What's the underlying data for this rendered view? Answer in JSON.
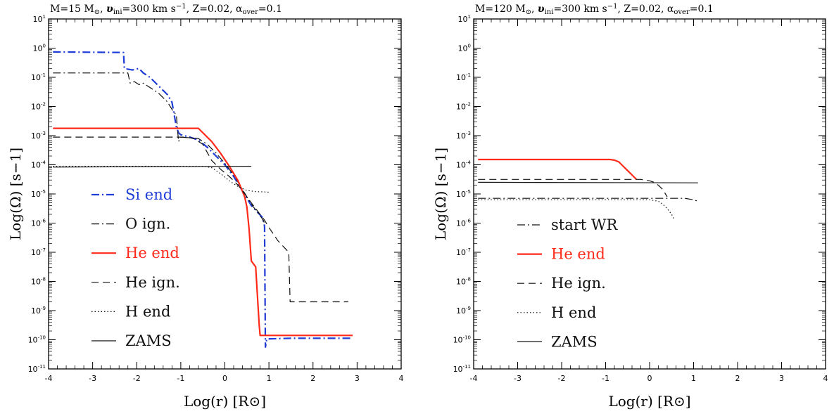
{
  "chart_data": [
    {
      "type": "line",
      "title": "M=15 M⊙, υini=300 km s−1, Z=0.02, αover=0.1",
      "title_parts": [
        "M=15 M",
        "⊙",
        ", ",
        "υ",
        "ini",
        "=300 km s",
        "−1",
        ", Z=0.02, ",
        "α",
        "over",
        "=0.1"
      ],
      "xlabel": "Log(r) [R⊙]",
      "ylabel": "Log(Ω) [s−1]",
      "xlim": [
        -4,
        4
      ],
      "ylim_exp": [
        -11,
        1
      ],
      "y_log_scale": true,
      "x_ticks": [
        "-4",
        "-3",
        "-2",
        "-1",
        "0",
        "1",
        "2",
        "3",
        "4"
      ],
      "y_tick_exponents": [
        "1",
        "0",
        "-1",
        "-2",
        "-3",
        "-4",
        "-5",
        "-6",
        "-7",
        "-8",
        "-9",
        "-10",
        "-11"
      ],
      "legend_placement": "lower-left",
      "series": [
        {
          "name": "Si end",
          "color": "#1f3cd6",
          "dash": "dashdot",
          "width": 2.2,
          "label_color": "#1f3cd6",
          "x": [
            -3.9,
            -2.3,
            -2.28,
            -2.1,
            -1.95,
            -1.85,
            -1.7,
            -1.5,
            -1.3,
            -1.2,
            -1.1,
            -1.05,
            -1.0,
            -0.8,
            -0.6,
            -0.4,
            -0.2,
            0.0,
            0.2,
            0.4,
            0.6,
            0.85,
            0.9,
            0.92,
            0.95,
            1.5,
            2.9
          ],
          "y": [
            -0.13,
            -0.15,
            -0.7,
            -0.75,
            -0.7,
            -0.85,
            -1.0,
            -1.3,
            -1.6,
            -1.85,
            -2.7,
            -2.9,
            -2.97,
            -3.05,
            -3.15,
            -3.4,
            -3.7,
            -4.0,
            -4.4,
            -4.9,
            -5.4,
            -5.8,
            -6.1,
            -10.25,
            -9.97,
            -9.95,
            -9.95
          ]
        },
        {
          "name": "O ign.",
          "color": "#111111",
          "dash": "dashdot",
          "width": 1.2,
          "label_color": "#111111",
          "x": [
            -3.9,
            -2.2,
            -2.15,
            -2.05,
            -1.95,
            -1.85,
            -1.7,
            -1.5,
            -1.3,
            -1.2,
            -1.1,
            -1.05,
            -1.0,
            -0.6,
            -0.4,
            -0.2,
            0.0,
            0.2,
            0.4,
            0.6,
            0.85,
            0.9
          ],
          "y": [
            -0.85,
            -0.85,
            -1.2,
            -1.15,
            -1.25,
            -1.2,
            -1.35,
            -1.55,
            -1.85,
            -2.1,
            -2.3,
            -3.2,
            -3.05,
            -3.1,
            -3.3,
            -3.6,
            -3.95,
            -4.35,
            -4.85,
            -5.35,
            -5.85,
            -6.0
          ]
        },
        {
          "name": "He end",
          "color": "#ff2a1a",
          "dash": "solid",
          "width": 2.2,
          "label_color": "#ff2a1a",
          "x": [
            -3.9,
            -0.6,
            -0.5,
            -0.3,
            -0.1,
            0.1,
            0.3,
            0.45,
            0.5,
            0.55,
            0.6,
            0.7,
            0.78,
            0.8,
            2.9
          ],
          "y": [
            -2.75,
            -2.75,
            -2.9,
            -3.2,
            -3.6,
            -4.05,
            -4.55,
            -5.1,
            -5.45,
            -6.2,
            -7.3,
            -7.5,
            -9.5,
            -9.85,
            -9.85
          ]
        },
        {
          "name": "He ign.",
          "color": "#111111",
          "dash": "dashed",
          "width": 1.2,
          "label_color": "#111111",
          "x": [
            -3.9,
            -0.9,
            -0.7,
            -0.5,
            -0.3,
            -0.1,
            0.1,
            0.3,
            0.5,
            0.7,
            0.9,
            1.0,
            1.2,
            1.45,
            1.48,
            2.8
          ],
          "y": [
            -3.05,
            -3.05,
            -3.1,
            -3.3,
            -3.85,
            -4.15,
            -4.4,
            -4.7,
            -5.1,
            -5.5,
            -5.9,
            -6.15,
            -6.6,
            -7.0,
            -8.7,
            -8.7
          ]
        },
        {
          "name": "H end",
          "color": "#111111",
          "dash": "dotted",
          "width": 1.2,
          "label_color": "#111111",
          "x": [
            -3.9,
            -0.5,
            -0.3,
            -0.1,
            0.1,
            0.3,
            0.5,
            0.7,
            0.9,
            1.0
          ],
          "y": [
            -4.05,
            -4.05,
            -4.1,
            -4.3,
            -4.55,
            -4.75,
            -4.88,
            -4.92,
            -4.93,
            -4.94
          ]
        },
        {
          "name": "ZAMS",
          "color": "#111111",
          "dash": "solid",
          "width": 1.2,
          "label_color": "#111111",
          "x": [
            -3.9,
            0.6
          ],
          "y": [
            -4.08,
            -4.05
          ]
        }
      ]
    },
    {
      "type": "line",
      "title": "M=120 M⊙, υini=300 km s−1, Z=0.02, αover=0.1",
      "title_parts": [
        "M=120 M",
        "⊙",
        ", ",
        "υ",
        "ini",
        "=300 km s",
        "−1",
        ", Z=0.02, ",
        "α",
        "over",
        "=0.1"
      ],
      "xlabel": "Log(r) [R⊙]",
      "ylabel": "Log(Ω) [s−1]",
      "xlim": [
        -4,
        4
      ],
      "ylim_exp": [
        -11,
        1
      ],
      "y_log_scale": true,
      "x_ticks": [
        "-4",
        "-3",
        "-2",
        "-1",
        "0",
        "1",
        "2",
        "3",
        "4"
      ],
      "y_tick_exponents": [
        "1",
        "0",
        "-1",
        "-2",
        "-3",
        "-4",
        "-5",
        "-6",
        "-7",
        "-8",
        "-9",
        "-10",
        "-11"
      ],
      "legend_placement": "lower-left",
      "series": [
        {
          "name": "start WR",
          "color": "#111111",
          "dash": "dashdot",
          "width": 1.2,
          "label_color": "#111111",
          "x": [
            -3.9,
            0.0,
            0.5,
            0.8,
            1.0,
            1.1
          ],
          "y": [
            -5.15,
            -5.15,
            -5.15,
            -5.15,
            -5.2,
            -5.25
          ]
        },
        {
          "name": "He end",
          "color": "#ff2a1a",
          "dash": "solid",
          "width": 2.2,
          "label_color": "#ff2a1a",
          "x": [
            -3.9,
            -2.0,
            -0.9,
            -0.8,
            -0.7,
            -0.6,
            -0.5,
            -0.4,
            -0.3
          ],
          "y": [
            -3.82,
            -3.82,
            -3.82,
            -3.84,
            -3.9,
            -4.05,
            -4.2,
            -4.35,
            -4.5
          ]
        },
        {
          "name": "He ign.",
          "color": "#111111",
          "dash": "dashed",
          "width": 1.2,
          "label_color": "#111111",
          "x": [
            -3.9,
            -0.2,
            0.0,
            0.1,
            0.2,
            0.3,
            0.4
          ],
          "y": [
            -4.5,
            -4.5,
            -4.55,
            -4.6,
            -4.7,
            -4.85,
            -5.1
          ]
        },
        {
          "name": "H end",
          "color": "#111111",
          "dash": "dotted",
          "width": 1.2,
          "label_color": "#111111",
          "x": [
            -3.9,
            0.0,
            0.2,
            0.3,
            0.4,
            0.5,
            0.55
          ],
          "y": [
            -5.2,
            -5.2,
            -5.25,
            -5.35,
            -5.5,
            -5.7,
            -5.85
          ]
        },
        {
          "name": "ZAMS",
          "color": "#111111",
          "dash": "solid",
          "width": 1.2,
          "label_color": "#111111",
          "x": [
            -3.9,
            1.1
          ],
          "y": [
            -4.6,
            -4.62
          ]
        }
      ]
    }
  ]
}
